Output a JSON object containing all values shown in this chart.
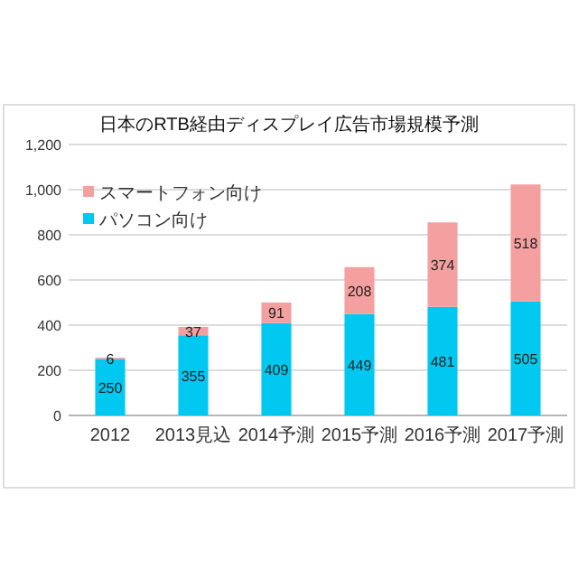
{
  "chart_data": {
    "type": "bar",
    "title": "日本のRTB経由ディスプレイ広告市場規模予測",
    "categories": [
      "2012",
      "2013見込",
      "2014予測",
      "2015予測",
      "2016予測",
      "2017予測"
    ],
    "stacked": true,
    "series": [
      {
        "name": "パソコン向け",
        "color": "#00c8f0",
        "values": [
          250,
          355,
          409,
          449,
          481,
          505
        ]
      },
      {
        "name": "スマートフォン向け",
        "color": "#f4a0a0",
        "values": [
          6,
          37,
          91,
          208,
          374,
          518
        ]
      }
    ],
    "ylim": [
      0,
      1200
    ],
    "yticks": [
      0,
      200,
      400,
      600,
      800,
      {
        "value": 1000,
        "label": "1,000"
      },
      {
        "value": 1200,
        "label": "1,200"
      }
    ],
    "grid": "y",
    "legend": "top left",
    "data_labels": true
  }
}
